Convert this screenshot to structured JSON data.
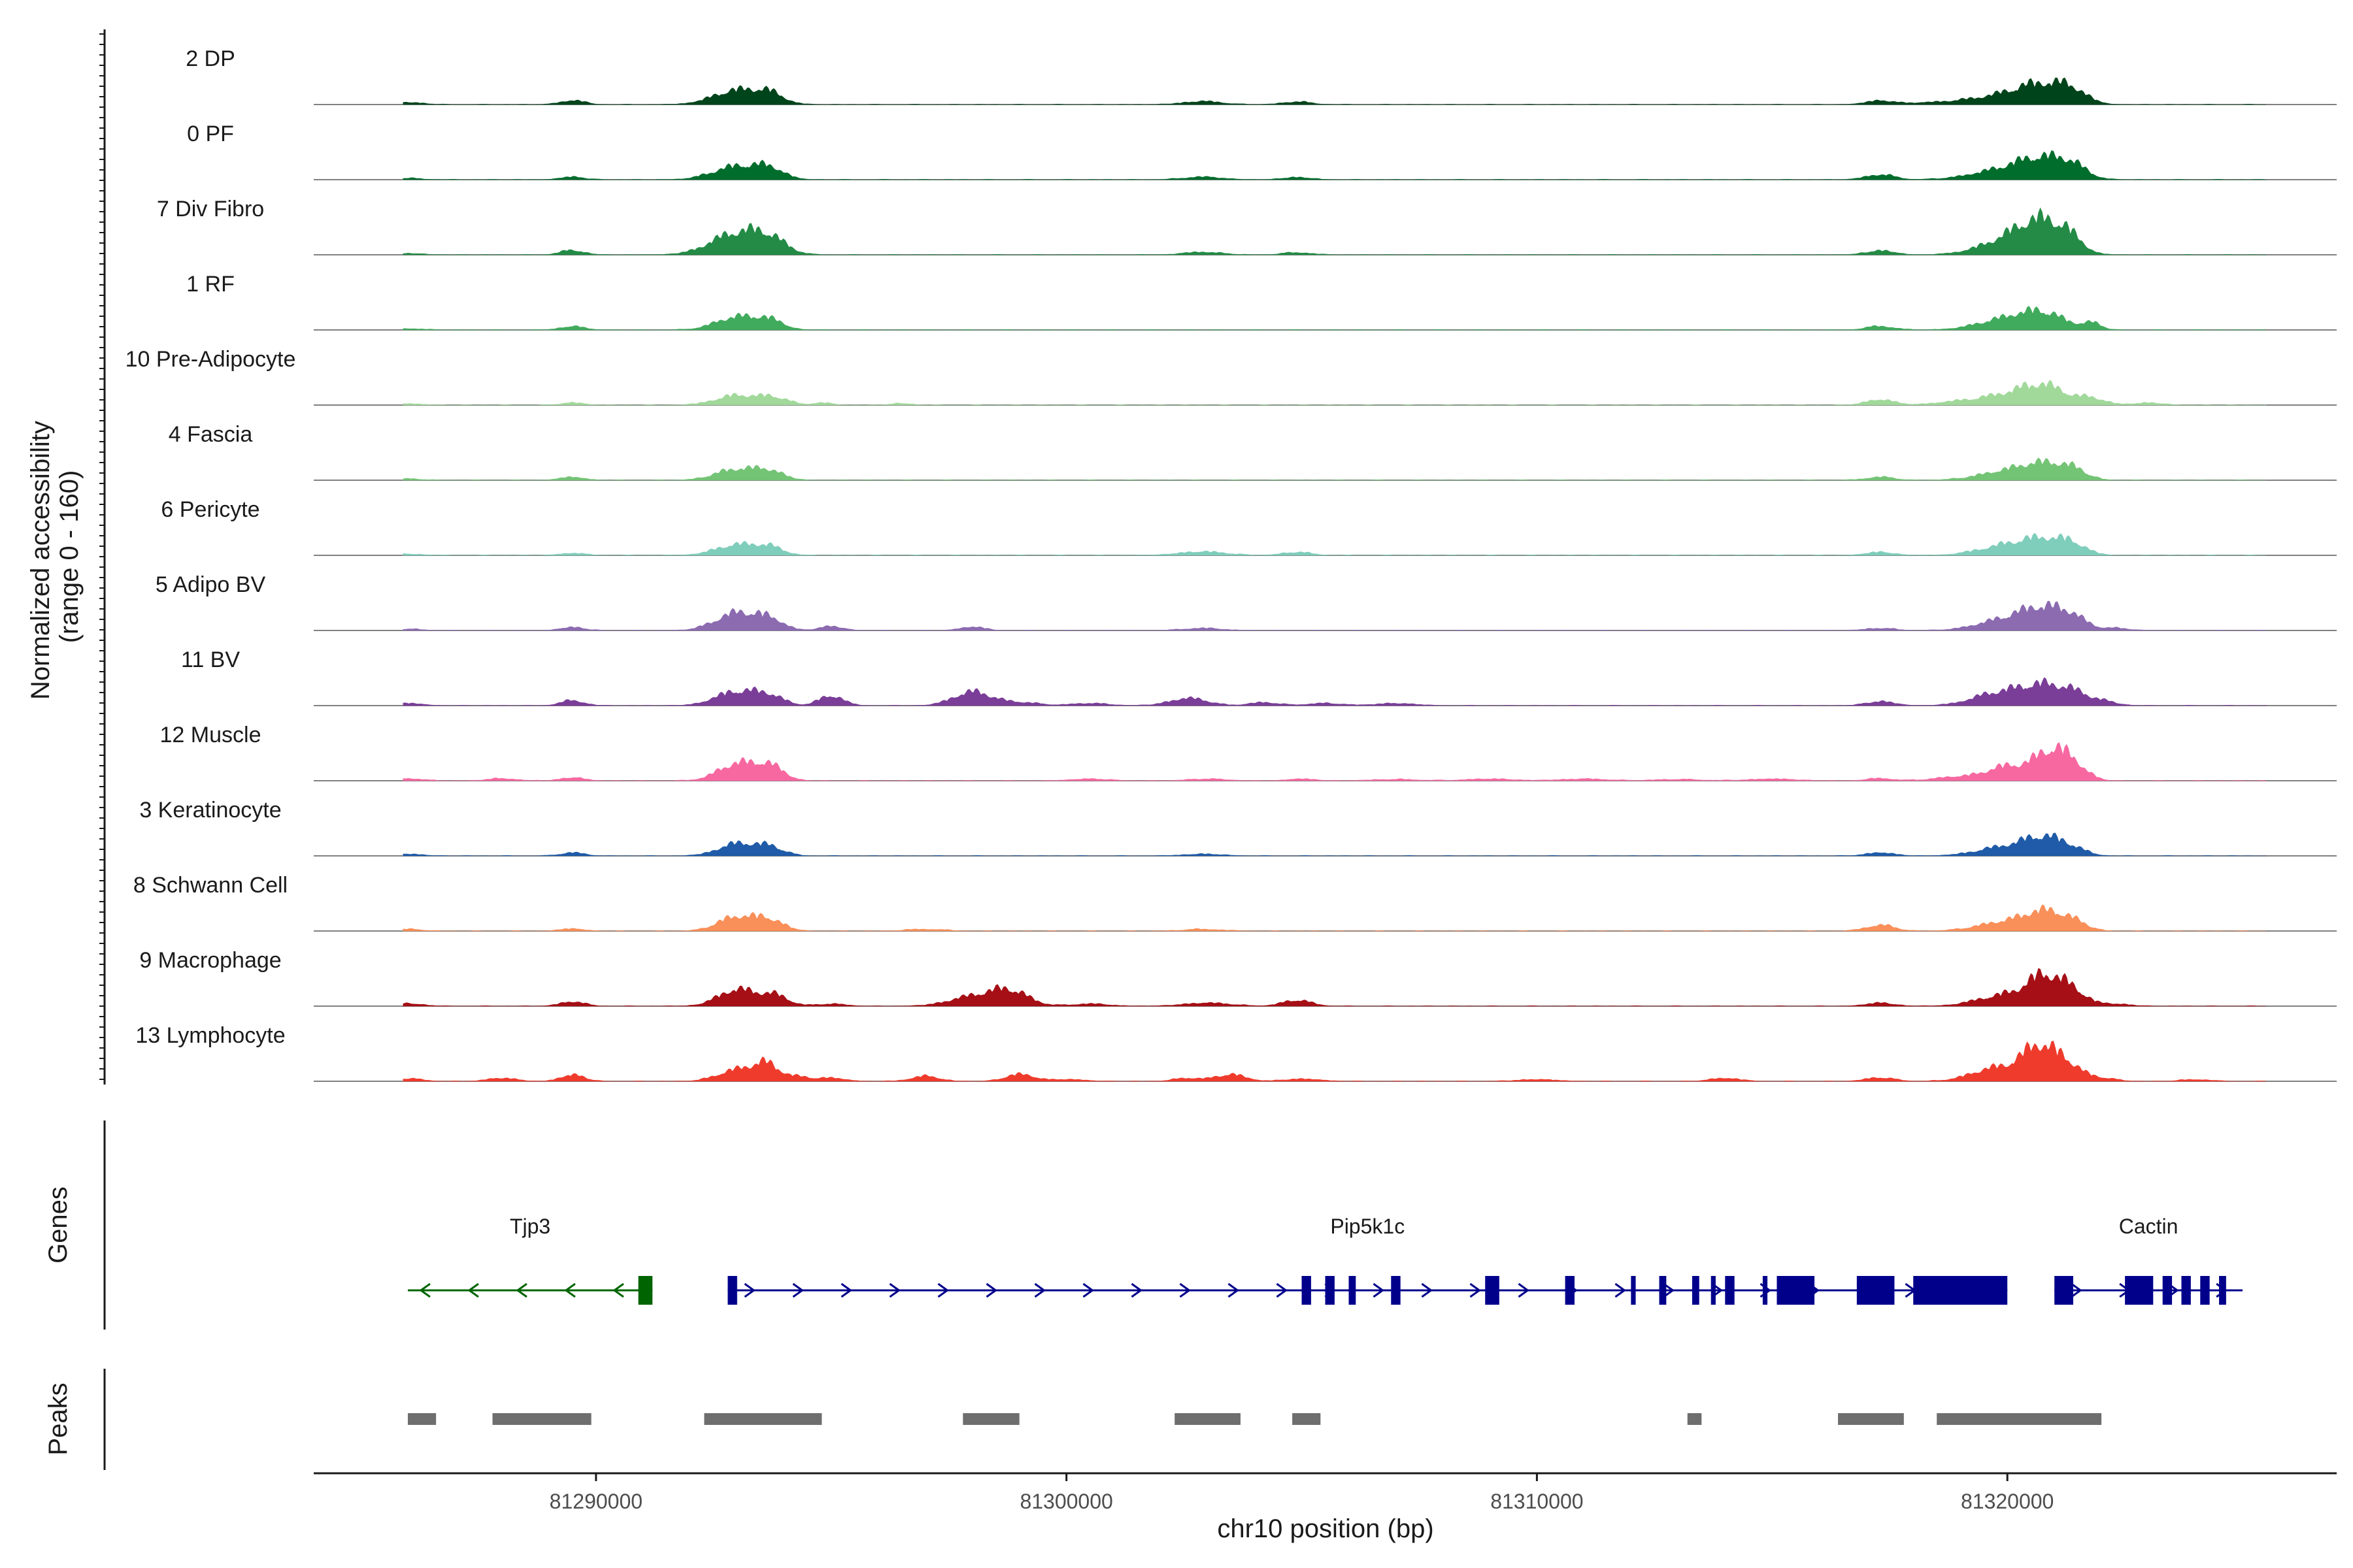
{
  "chart_data": {
    "type": "area",
    "title": "",
    "ylabel_line1": "Normalized accessibility",
    "ylabel_line2": "(range 0 - 160)",
    "ylim": [
      0,
      160
    ],
    "xlabel": "chr10 position (bp)",
    "xlim": [
      81284000,
      81327000
    ],
    "xticks": [
      81290000,
      81300000,
      81310000,
      81320000
    ],
    "xtick_labels": [
      "81290000",
      "81300000",
      "81310000",
      "81320000"
    ],
    "series": [
      {
        "name": "2 DP",
        "color": "#00441b",
        "peaks": [
          [
            81286000,
            10,
            0.3
          ],
          [
            81289500,
            18,
            0.25
          ],
          [
            81293000,
            62,
            0.5
          ],
          [
            81293700,
            38,
            0.3
          ],
          [
            81302900,
            14,
            0.4
          ],
          [
            81304900,
            12,
            0.3
          ],
          [
            81317300,
            16,
            0.3
          ],
          [
            81320000,
            40,
            0.7
          ],
          [
            81320800,
            70,
            0.5
          ],
          [
            81321400,
            42,
            0.3
          ],
          [
            81318500,
            8,
            0.6
          ]
        ]
      },
      {
        "name": "0 PF",
        "color": "#006d2c",
        "peaks": [
          [
            81286000,
            6,
            0.3
          ],
          [
            81289500,
            12,
            0.25
          ],
          [
            81293000,
            58,
            0.5
          ],
          [
            81293700,
            40,
            0.3
          ],
          [
            81302900,
            12,
            0.4
          ],
          [
            81304900,
            10,
            0.3
          ],
          [
            81317300,
            22,
            0.3
          ],
          [
            81320000,
            44,
            0.7
          ],
          [
            81320800,
            74,
            0.5
          ],
          [
            81321400,
            40,
            0.3
          ]
        ]
      },
      {
        "name": "7 Div Fibro",
        "color": "#238b45",
        "peaks": [
          [
            81286000,
            6,
            0.3
          ],
          [
            81289500,
            20,
            0.25
          ],
          [
            81293000,
            94,
            0.55
          ],
          [
            81293700,
            52,
            0.35
          ],
          [
            81302900,
            12,
            0.4
          ],
          [
            81304900,
            10,
            0.3
          ],
          [
            81317300,
            18,
            0.3
          ],
          [
            81320000,
            60,
            0.6
          ],
          [
            81320700,
            120,
            0.45
          ],
          [
            81321300,
            60,
            0.3
          ]
        ]
      },
      {
        "name": "1 RF",
        "color": "#41ab5d",
        "peaks": [
          [
            81286000,
            6,
            0.3
          ],
          [
            81289500,
            16,
            0.25
          ],
          [
            81293000,
            56,
            0.45
          ],
          [
            81293700,
            36,
            0.3
          ],
          [
            81317300,
            16,
            0.3
          ],
          [
            81320000,
            48,
            0.6
          ],
          [
            81320800,
            62,
            0.45
          ],
          [
            81321800,
            28,
            0.2
          ]
        ]
      },
      {
        "name": "10 Pre-Adipocyte",
        "color": "#a1d99b",
        "peaks": [
          [
            81286000,
            6,
            0.3
          ],
          [
            81289500,
            10,
            0.25
          ],
          [
            81293000,
            42,
            0.45
          ],
          [
            81293800,
            30,
            0.3
          ],
          [
            81294800,
            10,
            0.2
          ],
          [
            81296500,
            8,
            0.2
          ],
          [
            81317300,
            24,
            0.3
          ],
          [
            81319000,
            16,
            0.5
          ],
          [
            81320000,
            40,
            0.5
          ],
          [
            81320800,
            80,
            0.45
          ],
          [
            81321800,
            28,
            0.3
          ],
          [
            81323000,
            10,
            0.3
          ]
        ]
      },
      {
        "name": "4 Fascia",
        "color": "#74c476",
        "peaks": [
          [
            81286000,
            6,
            0.3
          ],
          [
            81289500,
            14,
            0.25
          ],
          [
            81293000,
            48,
            0.45
          ],
          [
            81293700,
            34,
            0.3
          ],
          [
            81317300,
            14,
            0.3
          ],
          [
            81320000,
            38,
            0.6
          ],
          [
            81320800,
            58,
            0.45
          ],
          [
            81321400,
            36,
            0.3
          ]
        ]
      },
      {
        "name": "6 Pericyte",
        "color": "#7fcdbb",
        "peaks": [
          [
            81286000,
            6,
            0.3
          ],
          [
            81289500,
            10,
            0.25
          ],
          [
            81293000,
            46,
            0.45
          ],
          [
            81293700,
            30,
            0.3
          ],
          [
            81302900,
            16,
            0.5
          ],
          [
            81304900,
            14,
            0.3
          ],
          [
            81317300,
            14,
            0.3
          ],
          [
            81320000,
            42,
            0.6
          ],
          [
            81320800,
            56,
            0.45
          ],
          [
            81321400,
            38,
            0.3
          ]
        ]
      },
      {
        "name": "5 Adipo BV",
        "color": "#8c6bb1",
        "peaks": [
          [
            81286000,
            6,
            0.3
          ],
          [
            81289500,
            14,
            0.25
          ],
          [
            81293000,
            76,
            0.45
          ],
          [
            81293700,
            40,
            0.3
          ],
          [
            81295000,
            18,
            0.25
          ],
          [
            81298000,
            16,
            0.25
          ],
          [
            81302900,
            10,
            0.4
          ],
          [
            81317300,
            10,
            0.3
          ],
          [
            81320000,
            48,
            0.6
          ],
          [
            81320800,
            82,
            0.45
          ],
          [
            81321400,
            42,
            0.3
          ],
          [
            81322300,
            10,
            0.3
          ]
        ]
      },
      {
        "name": "11 BV",
        "color": "#7a3d98",
        "peaks": [
          [
            81286000,
            10,
            0.3
          ],
          [
            81289500,
            22,
            0.25
          ],
          [
            81293000,
            62,
            0.45
          ],
          [
            81293700,
            36,
            0.3
          ],
          [
            81295000,
            44,
            0.25
          ],
          [
            81298000,
            60,
            0.4
          ],
          [
            81299000,
            14,
            0.4
          ],
          [
            81300500,
            10,
            0.4
          ],
          [
            81302600,
            32,
            0.4
          ],
          [
            81304200,
            14,
            0.3
          ],
          [
            81305500,
            10,
            0.4
          ],
          [
            81307000,
            10,
            0.4
          ],
          [
            81317300,
            18,
            0.3
          ],
          [
            81319500,
            10,
            0.4
          ],
          [
            81320000,
            52,
            0.6
          ],
          [
            81320800,
            68,
            0.45
          ],
          [
            81321400,
            40,
            0.3
          ],
          [
            81322000,
            20,
            0.3
          ]
        ]
      },
      {
        "name": "12 Muscle",
        "color": "#f768a1",
        "peaks": [
          [
            81286000,
            10,
            0.3
          ],
          [
            81288000,
            10,
            0.3
          ],
          [
            81289500,
            14,
            0.25
          ],
          [
            81293000,
            74,
            0.4
          ],
          [
            81293700,
            60,
            0.3
          ],
          [
            81300500,
            8,
            0.4
          ],
          [
            81303000,
            8,
            0.4
          ],
          [
            81305000,
            8,
            0.3
          ],
          [
            81307000,
            6,
            0.5
          ],
          [
            81309000,
            8,
            0.5
          ],
          [
            81311000,
            8,
            0.5
          ],
          [
            81313000,
            6,
            0.5
          ],
          [
            81315000,
            8,
            0.5
          ],
          [
            81317300,
            10,
            0.3
          ],
          [
            81319000,
            18,
            0.5
          ],
          [
            81320000,
            60,
            0.4
          ],
          [
            81320900,
            120,
            0.35
          ],
          [
            81321400,
            60,
            0.3
          ]
        ]
      },
      {
        "name": "3 Keratinocyte",
        "color": "#1f5ba8",
        "peaks": [
          [
            81286000,
            8,
            0.3
          ],
          [
            81289500,
            14,
            0.25
          ],
          [
            81293000,
            52,
            0.4
          ],
          [
            81293700,
            36,
            0.3
          ],
          [
            81302900,
            8,
            0.4
          ],
          [
            81317300,
            14,
            0.3
          ],
          [
            81320000,
            40,
            0.6
          ],
          [
            81320800,
            68,
            0.4
          ],
          [
            81321400,
            24,
            0.3
          ]
        ]
      },
      {
        "name": "8 Schwann Cell",
        "color": "#f98f59",
        "peaks": [
          [
            81286000,
            8,
            0.3
          ],
          [
            81289500,
            10,
            0.25
          ],
          [
            81293000,
            62,
            0.4
          ],
          [
            81293700,
            44,
            0.3
          ],
          [
            81297000,
            8,
            0.4
          ],
          [
            81302900,
            8,
            0.4
          ],
          [
            81317300,
            26,
            0.3
          ],
          [
            81320000,
            40,
            0.6
          ],
          [
            81320800,
            70,
            0.4
          ],
          [
            81321400,
            34,
            0.3
          ]
        ]
      },
      {
        "name": "9 Macrophage",
        "color": "#a50f15",
        "peaks": [
          [
            81286000,
            12,
            0.3
          ],
          [
            81289500,
            20,
            0.25
          ],
          [
            81293000,
            72,
            0.4
          ],
          [
            81293800,
            44,
            0.3
          ],
          [
            81295000,
            10,
            0.3
          ],
          [
            81298000,
            40,
            0.5
          ],
          [
            81298800,
            64,
            0.4
          ],
          [
            81300500,
            10,
            0.4
          ],
          [
            81303000,
            14,
            0.5
          ],
          [
            81304900,
            26,
            0.3
          ],
          [
            81317300,
            14,
            0.3
          ],
          [
            81320000,
            50,
            0.6
          ],
          [
            81320800,
            112,
            0.35
          ],
          [
            81321400,
            60,
            0.3
          ],
          [
            81322300,
            10,
            0.3
          ]
        ]
      },
      {
        "name": "13 Lymphocyte",
        "color": "#ef3b2c",
        "peaks": [
          [
            81286000,
            12,
            0.3
          ],
          [
            81288000,
            14,
            0.3
          ],
          [
            81289500,
            28,
            0.25
          ],
          [
            81293000,
            50,
            0.4
          ],
          [
            81293600,
            66,
            0.25
          ],
          [
            81294200,
            22,
            0.3
          ],
          [
            81295000,
            14,
            0.3
          ],
          [
            81297000,
            22,
            0.3
          ],
          [
            81299000,
            30,
            0.3
          ],
          [
            81300000,
            8,
            0.4
          ],
          [
            81302600,
            14,
            0.3
          ],
          [
            81303500,
            30,
            0.3
          ],
          [
            81305000,
            10,
            0.4
          ],
          [
            81310000,
            8,
            0.4
          ],
          [
            81314000,
            14,
            0.3
          ],
          [
            81317300,
            16,
            0.3
          ],
          [
            81319500,
            14,
            0.4
          ],
          [
            81320000,
            52,
            0.6
          ],
          [
            81320700,
            128,
            0.35
          ],
          [
            81321300,
            60,
            0.3
          ],
          [
            81322000,
            14,
            0.3
          ],
          [
            81324000,
            8,
            0.3
          ]
        ]
      }
    ],
    "genes_track_label": "Genes",
    "peaks_track_label": "Peaks",
    "genes": [
      {
        "name": "Tjp3",
        "start": 81286000,
        "end": 81291200,
        "strand": "-",
        "color": "#006400",
        "exons": [
          [
            81290900,
            81291200
          ]
        ]
      },
      {
        "name": "Pip5k1c",
        "start": 81292800,
        "end": 81320000,
        "strand": "+",
        "color": "#00008b",
        "exons": [
          [
            81292800,
            81293000
          ],
          [
            81305000,
            81305200
          ],
          [
            81305500,
            81305700
          ],
          [
            81306000,
            81306150
          ],
          [
            81306900,
            81307100
          ],
          [
            81308900,
            81309200
          ],
          [
            81310600,
            81310800
          ],
          [
            81312000,
            81312100
          ],
          [
            81312600,
            81312750
          ],
          [
            81313300,
            81313450
          ],
          [
            81313700,
            81313800
          ],
          [
            81314000,
            81314200
          ],
          [
            81314800,
            81314900
          ],
          [
            81315100,
            81315900
          ],
          [
            81316800,
            81317600
          ],
          [
            81318000,
            81320000
          ]
        ]
      },
      {
        "name": "Cactin",
        "start": 81321000,
        "end": 81325000,
        "strand": "+",
        "color": "#00008b",
        "exons": [
          [
            81321000,
            81321400
          ],
          [
            81322500,
            81323100
          ],
          [
            81323300,
            81323500
          ],
          [
            81323700,
            81323900
          ],
          [
            81324100,
            81324300
          ],
          [
            81324500,
            81324650
          ]
        ]
      }
    ],
    "peak_regions": [
      [
        81286000,
        81286600
      ],
      [
        81287800,
        81289900
      ],
      [
        81292300,
        81294800
      ],
      [
        81297800,
        81299000
      ],
      [
        81302300,
        81303700
      ],
      [
        81304800,
        81305400
      ],
      [
        81313200,
        81313500
      ],
      [
        81316400,
        81317800
      ],
      [
        81318500,
        81322000
      ]
    ]
  }
}
